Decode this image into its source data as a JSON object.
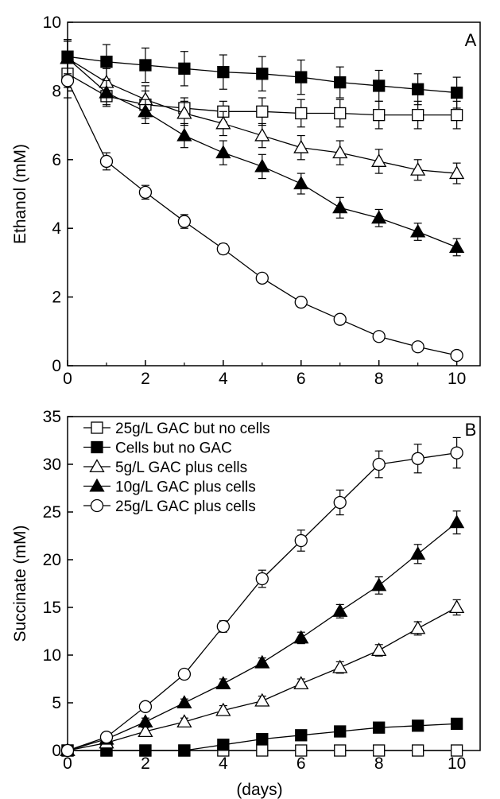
{
  "chart_data": [
    {
      "type": "line",
      "panel_label": "A",
      "xlabel": "",
      "ylabel": "Ethanol (mM)",
      "xlim": [
        0,
        10.6
      ],
      "ylim": [
        0,
        10
      ],
      "xticks": [
        0,
        2,
        4,
        6,
        8,
        10
      ],
      "yticks": [
        0,
        2,
        4,
        6,
        8,
        10
      ],
      "x": [
        0,
        1,
        2,
        3,
        4,
        5,
        6,
        7,
        8,
        9,
        10
      ],
      "series": [
        {
          "name": "25g/L GAC but no cells",
          "marker": "square-open",
          "values": [
            8.5,
            7.85,
            7.6,
            7.5,
            7.4,
            7.4,
            7.35,
            7.35,
            7.3,
            7.3,
            7.3
          ],
          "errors": [
            0.4,
            0.3,
            0.4,
            0.3,
            0.3,
            0.4,
            0.4,
            0.4,
            0.4,
            0.4,
            0.4
          ]
        },
        {
          "name": "Cells but no GAC",
          "marker": "square-filled",
          "values": [
            9.0,
            8.85,
            8.75,
            8.65,
            8.55,
            8.5,
            8.4,
            8.25,
            8.15,
            8.05,
            7.95
          ],
          "errors": [
            0.5,
            0.5,
            0.5,
            0.5,
            0.5,
            0.5,
            0.5,
            0.45,
            0.45,
            0.45,
            0.45
          ]
        },
        {
          "name": "5g/L GAC plus cells",
          "marker": "triangle-open",
          "values": [
            8.95,
            8.25,
            7.75,
            7.35,
            7.05,
            6.7,
            6.35,
            6.2,
            5.95,
            5.7,
            5.6
          ],
          "errors": [
            0.5,
            0.4,
            0.4,
            0.35,
            0.35,
            0.35,
            0.35,
            0.35,
            0.35,
            0.3,
            0.3
          ]
        },
        {
          "name": "10g/L GAC plus cells",
          "marker": "triangle-filled",
          "values": [
            8.95,
            7.95,
            7.4,
            6.7,
            6.2,
            5.8,
            5.3,
            4.6,
            4.3,
            3.9,
            3.45
          ],
          "errors": [
            0.5,
            0.35,
            0.35,
            0.35,
            0.35,
            0.35,
            0.3,
            0.3,
            0.25,
            0.25,
            0.25
          ]
        },
        {
          "name": "25g/L GAC plus cells",
          "marker": "circle-open",
          "values": [
            8.3,
            5.95,
            5.05,
            4.2,
            3.4,
            2.55,
            1.85,
            1.35,
            0.85,
            0.55,
            0.3
          ],
          "errors": [
            0.5,
            0.25,
            0.2,
            0.2,
            0.15,
            0.1,
            0.1,
            0.1,
            0.1,
            0.1,
            0.1
          ]
        }
      ]
    },
    {
      "type": "line",
      "panel_label": "B",
      "xlabel": "(days)",
      "ylabel": "Succinate (mM)",
      "xlim": [
        0,
        10.6
      ],
      "ylim": [
        0,
        35
      ],
      "xticks": [
        0,
        2,
        4,
        6,
        8,
        10
      ],
      "yticks": [
        0,
        5,
        10,
        15,
        20,
        25,
        30,
        35
      ],
      "legend_position": "top-left",
      "x": [
        0,
        1,
        2,
        3,
        4,
        5,
        6,
        7,
        8,
        9,
        10
      ],
      "series": [
        {
          "name": "25g/L GAC but no cells",
          "marker": "square-open",
          "values": [
            0,
            0,
            0,
            0,
            0,
            0,
            0,
            0,
            0,
            0,
            0
          ],
          "errors": [
            0.2,
            0.2,
            0.2,
            0.2,
            0.2,
            0.2,
            0.2,
            0.2,
            0.2,
            0.2,
            0.2
          ]
        },
        {
          "name": "Cells but no GAC",
          "marker": "square-filled",
          "values": [
            0,
            0,
            0,
            0,
            0.6,
            1.2,
            1.6,
            2.0,
            2.4,
            2.6,
            2.8
          ],
          "errors": [
            0.2,
            0.2,
            0.2,
            0.2,
            0.2,
            0.2,
            0.2,
            0.2,
            0.2,
            0.2,
            0.2
          ]
        },
        {
          "name": "5g/L GAC plus cells",
          "marker": "triangle-open",
          "values": [
            0,
            0.8,
            2.0,
            3.0,
            4.2,
            5.2,
            7.0,
            8.7,
            10.5,
            12.8,
            15.0
          ],
          "errors": [
            0.3,
            0.3,
            0.4,
            0.4,
            0.5,
            0.5,
            0.5,
            0.6,
            0.6,
            0.7,
            0.8
          ]
        },
        {
          "name": "10g/L GAC plus cells",
          "marker": "triangle-filled",
          "values": [
            0,
            1.2,
            3.0,
            5.0,
            7.0,
            9.2,
            11.8,
            14.6,
            17.3,
            20.6,
            23.9
          ],
          "errors": [
            0.3,
            0.3,
            0.4,
            0.4,
            0.5,
            0.5,
            0.6,
            0.7,
            0.9,
            1.0,
            1.2
          ]
        },
        {
          "name": "25g/L GAC plus cells",
          "marker": "circle-open",
          "values": [
            0,
            1.4,
            4.6,
            8.0,
            13.0,
            18.0,
            22.0,
            26.0,
            30.0,
            30.6,
            31.2
          ],
          "errors": [
            0.3,
            0.3,
            0.4,
            0.4,
            0.6,
            0.9,
            1.1,
            1.3,
            1.4,
            1.5,
            1.6
          ]
        }
      ]
    }
  ]
}
